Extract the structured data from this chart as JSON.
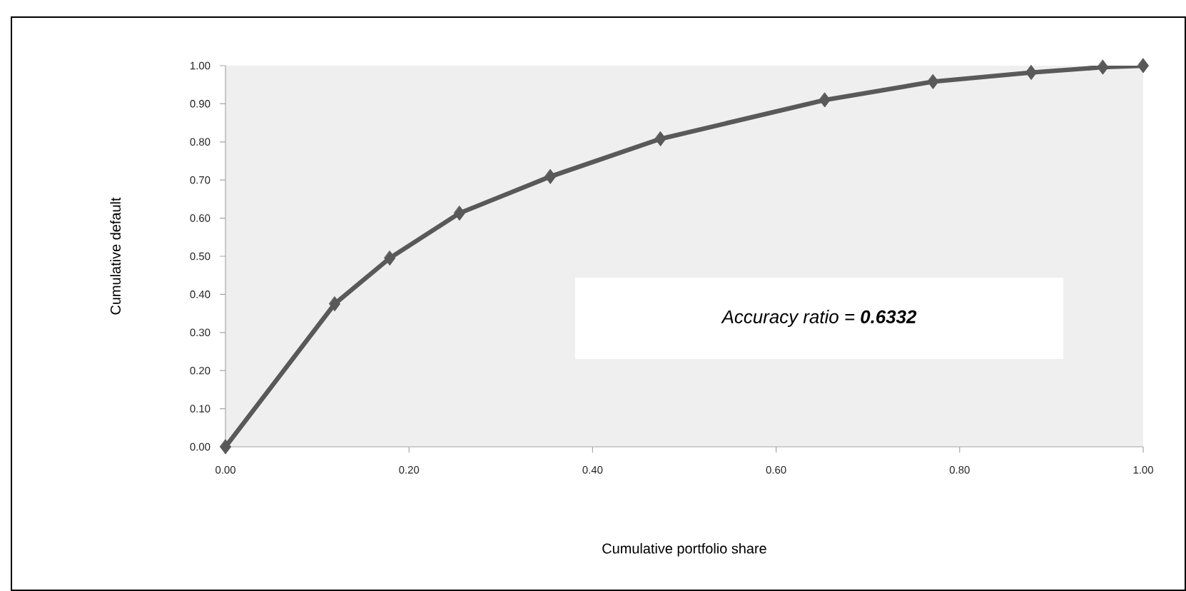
{
  "chart_data": {
    "type": "line",
    "xlabel": "Cumulative portfolio share",
    "ylabel": "Cumulative default",
    "annotations": [
      "Accuracy ratio = **0.6332**"
    ],
    "x": [
      0,
      0.119,
      0.179,
      0.255,
      0.354,
      0.474,
      0.653,
      0.771,
      0.878,
      0.956,
      1
    ],
    "series": [
      {
        "color": "#595959",
        "values": [
          0,
          0.375,
          0.495,
          0.613,
          0.709,
          0.808,
          0.91,
          0.958,
          0.982,
          0.996,
          1
        ]
      }
    ],
    "marker": "diamond",
    "line_style": "solid",
    "grid": false,
    "xlim": [
      0,
      1
    ],
    "ylim": [
      0,
      1
    ],
    "xticks": [
      {
        "value": 0,
        "label": "0.00"
      },
      {
        "value": 0.2,
        "label": "0.20"
      },
      {
        "value": 0.4,
        "label": "0.40"
      },
      {
        "value": 0.6,
        "label": "0.60"
      },
      {
        "value": 0.8,
        "label": "0.80"
      },
      {
        "value": 1,
        "label": "1.00"
      }
    ],
    "yticks": [
      {
        "value": 0,
        "label": "0.00"
      },
      {
        "value": 0.1,
        "label": "0.10"
      },
      {
        "value": 0.2,
        "label": "0.20"
      },
      {
        "value": 0.3,
        "label": "0.30"
      },
      {
        "value": 0.4,
        "label": "0.40"
      },
      {
        "value": 0.5,
        "label": "0.50"
      },
      {
        "value": 0.6,
        "label": "0.60"
      },
      {
        "value": 0.7,
        "label": "0.70"
      },
      {
        "value": 0.8,
        "label": "0.80"
      },
      {
        "value": 0.9,
        "label": "0.90"
      },
      {
        "value": 1,
        "label": "1.00"
      }
    ]
  }
}
